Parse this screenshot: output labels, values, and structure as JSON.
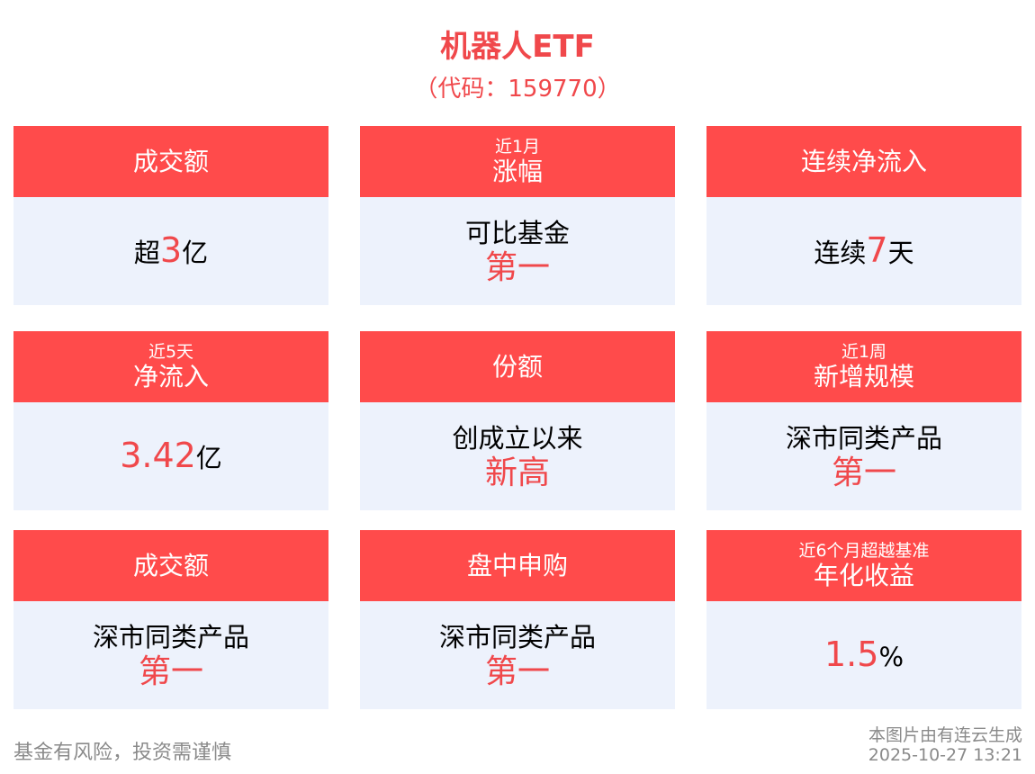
{
  "header": {
    "title": "机器人ETF",
    "code": "（代码：159770）"
  },
  "colors": {
    "accent": "#ff4b4b",
    "card_bg": "#edf2fc",
    "highlight": "#f0484b"
  },
  "cards": [
    {
      "sub": "",
      "title": "成交额",
      "lines": [
        [
          {
            "t": "超",
            "h": false
          },
          {
            "t": "3",
            "h": true
          },
          {
            "t": "亿",
            "h": false
          }
        ]
      ],
      "big": ""
    },
    {
      "sub": "近1月",
      "title": "涨幅",
      "lines": [
        [
          {
            "t": "可比基金",
            "h": false
          }
        ]
      ],
      "big": "第一"
    },
    {
      "sub": "",
      "title": "连续净流入",
      "lines": [
        [
          {
            "t": "连续",
            "h": false
          },
          {
            "t": "7",
            "h": true
          },
          {
            "t": "天",
            "h": false
          }
        ]
      ],
      "big": ""
    },
    {
      "sub": "近5天",
      "title": "净流入",
      "lines": [
        [
          {
            "t": "3.42",
            "h": true
          },
          {
            "t": "亿",
            "h": false
          }
        ]
      ],
      "big": ""
    },
    {
      "sub": "",
      "title": "份额",
      "lines": [
        [
          {
            "t": "创成立以来",
            "h": false
          }
        ]
      ],
      "big": "新高"
    },
    {
      "sub": "近1周",
      "title": "新增规模",
      "lines": [
        [
          {
            "t": "深市同类产品",
            "h": false
          }
        ]
      ],
      "big": "第一"
    },
    {
      "sub": "",
      "title": "成交额",
      "lines": [
        [
          {
            "t": "深市同类产品",
            "h": false
          }
        ]
      ],
      "big": "第一"
    },
    {
      "sub": "",
      "title": "盘中申购",
      "lines": [
        [
          {
            "t": "深市同类产品",
            "h": false
          }
        ]
      ],
      "big": "第一"
    },
    {
      "sub": "近6个月超越基准",
      "title": "年化收益",
      "lines": [
        [
          {
            "t": "1.5",
            "h": true
          },
          {
            "t": "%",
            "h": false
          }
        ]
      ],
      "big": ""
    }
  ],
  "footer": {
    "disclaimer": "基金有风险，投资需谨慎",
    "source": "本图片由有连云生成",
    "timestamp": "2025-10-27 13:21"
  }
}
